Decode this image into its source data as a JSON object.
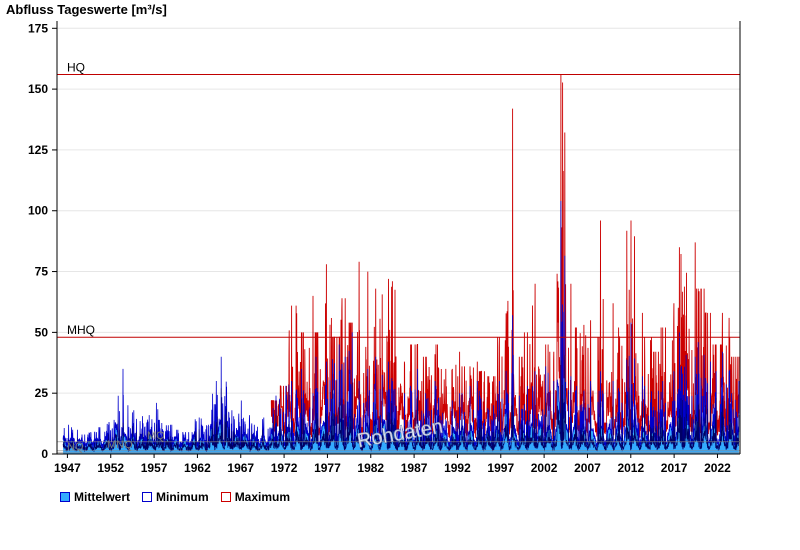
{
  "chart_data": {
    "type": "area",
    "title": "Abfluss Tageswerte [m³/s]",
    "ylim": [
      0,
      178
    ],
    "yticks": [
      0,
      25,
      50,
      75,
      100,
      125,
      150,
      175
    ],
    "xlim": [
      1945.8,
      2024.6
    ],
    "xticks": [
      1947,
      1952,
      1957,
      1962,
      1967,
      1972,
      1977,
      1982,
      1987,
      1992,
      1997,
      2002,
      2007,
      2012,
      2017,
      2022
    ],
    "reference_lines": [
      {
        "label": "HQ",
        "value": 156,
        "color": "#c00000"
      },
      {
        "label": "MHQ",
        "value": 48,
        "color": "#c00000"
      },
      {
        "label": "MQ",
        "value": 5,
        "color": "#888888"
      },
      {
        "label": "MNQ",
        "value": 1.3,
        "color": "#888888"
      },
      {
        "label": "NQ",
        "value": 0.5,
        "color": "#888888"
      }
    ],
    "annotations": [
      "Rohdaten"
    ],
    "grid": true,
    "legend_position": "bottom-left",
    "series": [
      {
        "name": "Mittelwert",
        "color": "#33aaff",
        "role": "filled-area"
      },
      {
        "name": "Minimum",
        "color": "#0000cc",
        "role": "line"
      },
      {
        "name": "Maximum",
        "color": "#cc0000",
        "role": "line",
        "start_year": 1971
      }
    ],
    "approx_yearly_peaks": {
      "x": [
        1947,
        1948,
        1949,
        1950,
        1951,
        1952,
        1953,
        1954,
        1955,
        1956,
        1957,
        1958,
        1959,
        1960,
        1961,
        1962,
        1963,
        1964,
        1965,
        1966,
        1967,
        1968,
        1969,
        1970,
        1971,
        1972,
        1973,
        1974,
        1975,
        1976,
        1977,
        1978,
        1979,
        1980,
        1981,
        1982,
        1983,
        1984,
        1985,
        1986,
        1987,
        1988,
        1989,
        1990,
        1991,
        1992,
        1993,
        1994,
        1995,
        1996,
        1997,
        1998,
        1999,
        2000,
        2001,
        2002,
        2003,
        2004,
        2005,
        2006,
        2007,
        2008,
        2009,
        2010,
        2011,
        2012,
        2013,
        2014,
        2015,
        2016,
        2017,
        2018,
        2019,
        2020,
        2021,
        2022,
        2023,
        2024
      ],
      "mittelwert": [
        12,
        10,
        8,
        9,
        11,
        14,
        35,
        20,
        18,
        16,
        21,
        14,
        12,
        10,
        9,
        15,
        12,
        30,
        40,
        18,
        22,
        16,
        12,
        15,
        24,
        28,
        30,
        35,
        25,
        40,
        38,
        45,
        40,
        50,
        30,
        35,
        40,
        38,
        30,
        25,
        35,
        25,
        30,
        28,
        22,
        25,
        28,
        30,
        26,
        20,
        30,
        57,
        24,
        28,
        34,
        36,
        30,
        104,
        32,
        28,
        30,
        26,
        34,
        30,
        27,
        54,
        32,
        28,
        26,
        30,
        34,
        50,
        40,
        46,
        38,
        34,
        42,
        30
      ],
      "maximum": [
        0,
        0,
        0,
        0,
        0,
        0,
        0,
        0,
        0,
        0,
        0,
        0,
        0,
        0,
        0,
        0,
        0,
        0,
        0,
        0,
        0,
        0,
        0,
        0,
        22,
        28,
        61,
        50,
        65,
        50,
        78,
        48,
        64,
        54,
        79,
        75,
        68,
        72,
        71,
        38,
        45,
        40,
        41,
        45,
        35,
        42,
        36,
        38,
        34,
        32,
        48,
        142,
        40,
        50,
        70,
        45,
        42,
        156,
        70,
        52,
        55,
        48,
        96,
        62,
        52,
        96,
        58,
        48,
        42,
        52,
        62,
        85,
        87,
        68,
        58,
        45,
        58,
        40
      ]
    }
  }
}
